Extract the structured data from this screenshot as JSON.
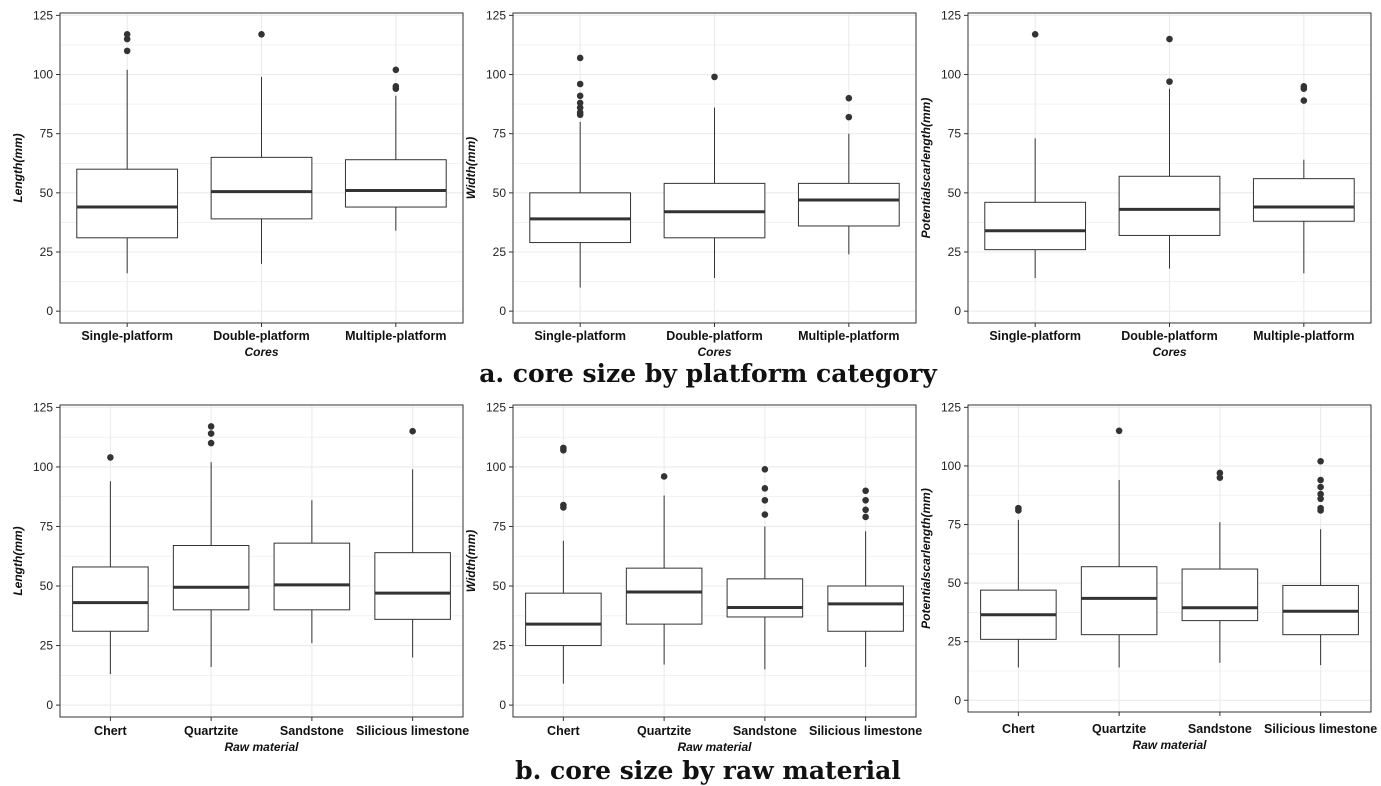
{
  "captions": {
    "top": "a. core size by platform category",
    "bottom": "b. core size by raw material"
  },
  "colors": {
    "grid": "#ebebeb",
    "box_line": "#333333",
    "median": "#333333",
    "outlier": "#333333",
    "frame": "#333333"
  },
  "chart_data": [
    {
      "type": "boxplot",
      "title": "",
      "xlabel": "Cores",
      "ylabel": "Length(mm)",
      "ylim": [
        -5,
        126
      ],
      "yticks": [
        0,
        25,
        50,
        75,
        100,
        125
      ],
      "grid": true,
      "categories": [
        "Single-platform",
        "Double-platform",
        "Multiple-platform"
      ],
      "boxes": [
        {
          "lower": 16,
          "q1": 31,
          "median": 44,
          "q3": 60,
          "upper": 102,
          "outliers": [
            110,
            115,
            117
          ]
        },
        {
          "lower": 20,
          "q1": 39,
          "median": 50.5,
          "q3": 65,
          "upper": 99,
          "outliers": [
            117
          ]
        },
        {
          "lower": 34,
          "q1": 44,
          "median": 51,
          "q3": 64,
          "upper": 91,
          "outliers": [
            94,
            95,
            102
          ]
        }
      ]
    },
    {
      "type": "boxplot",
      "title": "",
      "xlabel": "Cores",
      "ylabel": "Width(mm)",
      "ylim": [
        -5,
        126
      ],
      "yticks": [
        0,
        25,
        50,
        75,
        100,
        125
      ],
      "grid": true,
      "categories": [
        "Single-platform",
        "Double-platform",
        "Multiple-platform"
      ],
      "boxes": [
        {
          "lower": 10,
          "q1": 29,
          "median": 39,
          "q3": 50,
          "upper": 80,
          "outliers": [
            83,
            84,
            86,
            88,
            91,
            96,
            107
          ]
        },
        {
          "lower": 14,
          "q1": 31,
          "median": 42,
          "q3": 54,
          "upper": 86,
          "outliers": [
            99
          ]
        },
        {
          "lower": 24,
          "q1": 36,
          "median": 47,
          "q3": 54,
          "upper": 75,
          "outliers": [
            82,
            90
          ]
        }
      ]
    },
    {
      "type": "boxplot",
      "title": "",
      "xlabel": "Cores",
      "ylabel": "Potentialscarlength(mm)",
      "ylim": [
        -5,
        126
      ],
      "yticks": [
        0,
        25,
        50,
        75,
        100,
        125
      ],
      "grid": true,
      "categories": [
        "Single-platform",
        "Double-platform",
        "Multiple-platform"
      ],
      "boxes": [
        {
          "lower": 14,
          "q1": 26,
          "median": 34,
          "q3": 46,
          "upper": 73,
          "outliers": [
            117
          ]
        },
        {
          "lower": 18,
          "q1": 32,
          "median": 43,
          "q3": 57,
          "upper": 94,
          "outliers": [
            97,
            115
          ]
        },
        {
          "lower": 16,
          "q1": 38,
          "median": 44,
          "q3": 56,
          "upper": 64,
          "outliers": [
            89,
            94,
            95
          ]
        }
      ]
    },
    {
      "type": "boxplot",
      "title": "",
      "xlabel": "Raw material",
      "ylabel": "Length(mm)",
      "ylim": [
        -5,
        126
      ],
      "yticks": [
        0,
        25,
        50,
        75,
        100,
        125
      ],
      "grid": true,
      "categories": [
        "Chert",
        "Quartzite",
        "Sandstone",
        "Silicious limestone"
      ],
      "boxes": [
        {
          "lower": 13,
          "q1": 31,
          "median": 43,
          "q3": 58,
          "upper": 94,
          "outliers": [
            104
          ]
        },
        {
          "lower": 16,
          "q1": 40,
          "median": 49.5,
          "q3": 67,
          "upper": 102,
          "outliers": [
            110,
            114,
            117
          ]
        },
        {
          "lower": 26,
          "q1": 40,
          "median": 50.5,
          "q3": 68,
          "upper": 86,
          "outliers": []
        },
        {
          "lower": 20,
          "q1": 36,
          "median": 47,
          "q3": 64,
          "upper": 99,
          "outliers": [
            115
          ]
        }
      ]
    },
    {
      "type": "boxplot",
      "title": "",
      "xlabel": "Raw material",
      "ylabel": "Width(mm)",
      "ylim": [
        -5,
        126
      ],
      "yticks": [
        0,
        25,
        50,
        75,
        100,
        125
      ],
      "grid": true,
      "categories": [
        "Chert",
        "Quartzite",
        "Sandstone",
        "Silicious limestone"
      ],
      "boxes": [
        {
          "lower": 9,
          "q1": 25,
          "median": 34,
          "q3": 47,
          "upper": 69,
          "outliers": [
            83,
            84,
            107,
            108
          ]
        },
        {
          "lower": 17,
          "q1": 34,
          "median": 47.5,
          "q3": 57.5,
          "upper": 88,
          "outliers": [
            96
          ]
        },
        {
          "lower": 15,
          "q1": 37,
          "median": 41,
          "q3": 53,
          "upper": 75,
          "outliers": [
            80,
            86,
            91,
            99
          ]
        },
        {
          "lower": 16,
          "q1": 31,
          "median": 42.5,
          "q3": 50,
          "upper": 73,
          "outliers": [
            79,
            82,
            86,
            90
          ]
        }
      ]
    },
    {
      "type": "boxplot",
      "title": "",
      "xlabel": "Raw material",
      "ylabel": "Potentialscarlength(mm)",
      "ylim": [
        -5,
        126
      ],
      "yticks": [
        0,
        25,
        50,
        75,
        100,
        125
      ],
      "grid": true,
      "categories": [
        "Chert",
        "Quartzite",
        "Sandstone",
        "Silicious limestone"
      ],
      "boxes": [
        {
          "lower": 14,
          "q1": 26,
          "median": 36.5,
          "q3": 47,
          "upper": 77,
          "outliers": [
            81,
            82
          ]
        },
        {
          "lower": 14,
          "q1": 28,
          "median": 43.5,
          "q3": 57,
          "upper": 94,
          "outliers": [
            115
          ]
        },
        {
          "lower": 16,
          "q1": 34,
          "median": 39.5,
          "q3": 56,
          "upper": 76,
          "outliers": [
            95,
            97
          ]
        },
        {
          "lower": 15,
          "q1": 28,
          "median": 38,
          "q3": 49,
          "upper": 73,
          "outliers": [
            81,
            82,
            86,
            88,
            91,
            94,
            102
          ]
        }
      ]
    }
  ]
}
